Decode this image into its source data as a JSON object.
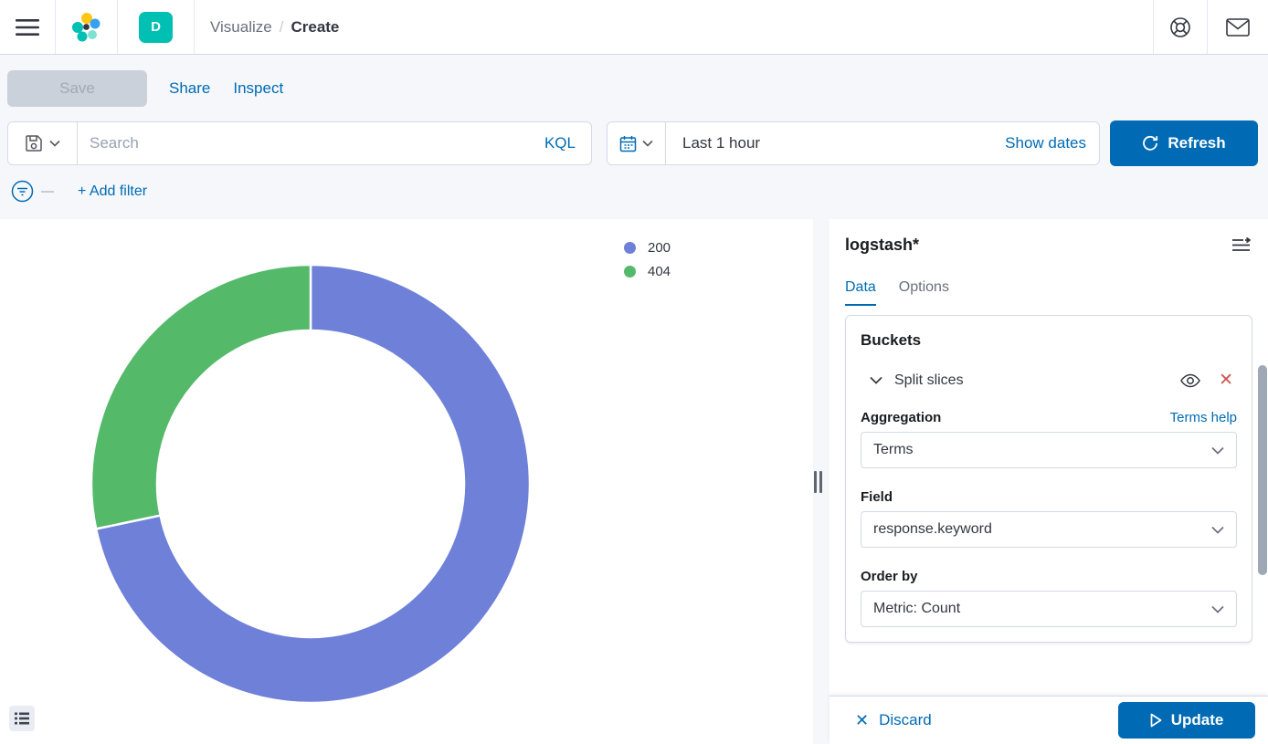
{
  "header": {
    "breadcrumb": {
      "section": "Visualize",
      "separator": "/",
      "current": "Create"
    },
    "space_badge": "D"
  },
  "toolbar": {
    "save": "Save",
    "share": "Share",
    "inspect": "Inspect"
  },
  "query_bar": {
    "search_placeholder": "Search",
    "language": "KQL",
    "time_value": "Last 1 hour",
    "show_dates": "Show dates",
    "refresh": "Refresh"
  },
  "filter_bar": {
    "add_filter": "+ Add filter"
  },
  "chart_data": {
    "type": "pie",
    "subtype": "donut",
    "categories": [
      "200",
      "404"
    ],
    "values": [
      71.7,
      28.3
    ],
    "value_unit": "percent of ring, estimated from arc angles",
    "colors": [
      "#6E80D8",
      "#55B96A"
    ],
    "legend_position": "top-right",
    "start_angle_deg": 0,
    "direction": "clockwise",
    "inner_radius_ratio": 0.7
  },
  "sidebar": {
    "index_pattern": "logstash*",
    "tabs": [
      {
        "label": "Data",
        "active": true
      },
      {
        "label": "Options",
        "active": false
      }
    ],
    "buckets": {
      "title": "Buckets",
      "accordion_label": "Split slices",
      "aggregation_label": "Aggregation",
      "aggregation_help": "Terms help",
      "aggregation_value": "Terms",
      "field_label": "Field",
      "field_value": "response.keyword",
      "order_by_label": "Order by",
      "order_by_value": "Metric: Count"
    },
    "actions": {
      "discard": "Discard",
      "update": "Update"
    }
  },
  "icons": {
    "discard": "✕",
    "remove_bucket": "✕"
  },
  "colors": {
    "primary": "#006BB4",
    "text": "#343741",
    "text_subdued": "#69707D",
    "border": "#D3DAE6",
    "page_bg": "#F5F7FA",
    "danger": "#D0544F",
    "space_badge_bg": "#00BFB3"
  }
}
